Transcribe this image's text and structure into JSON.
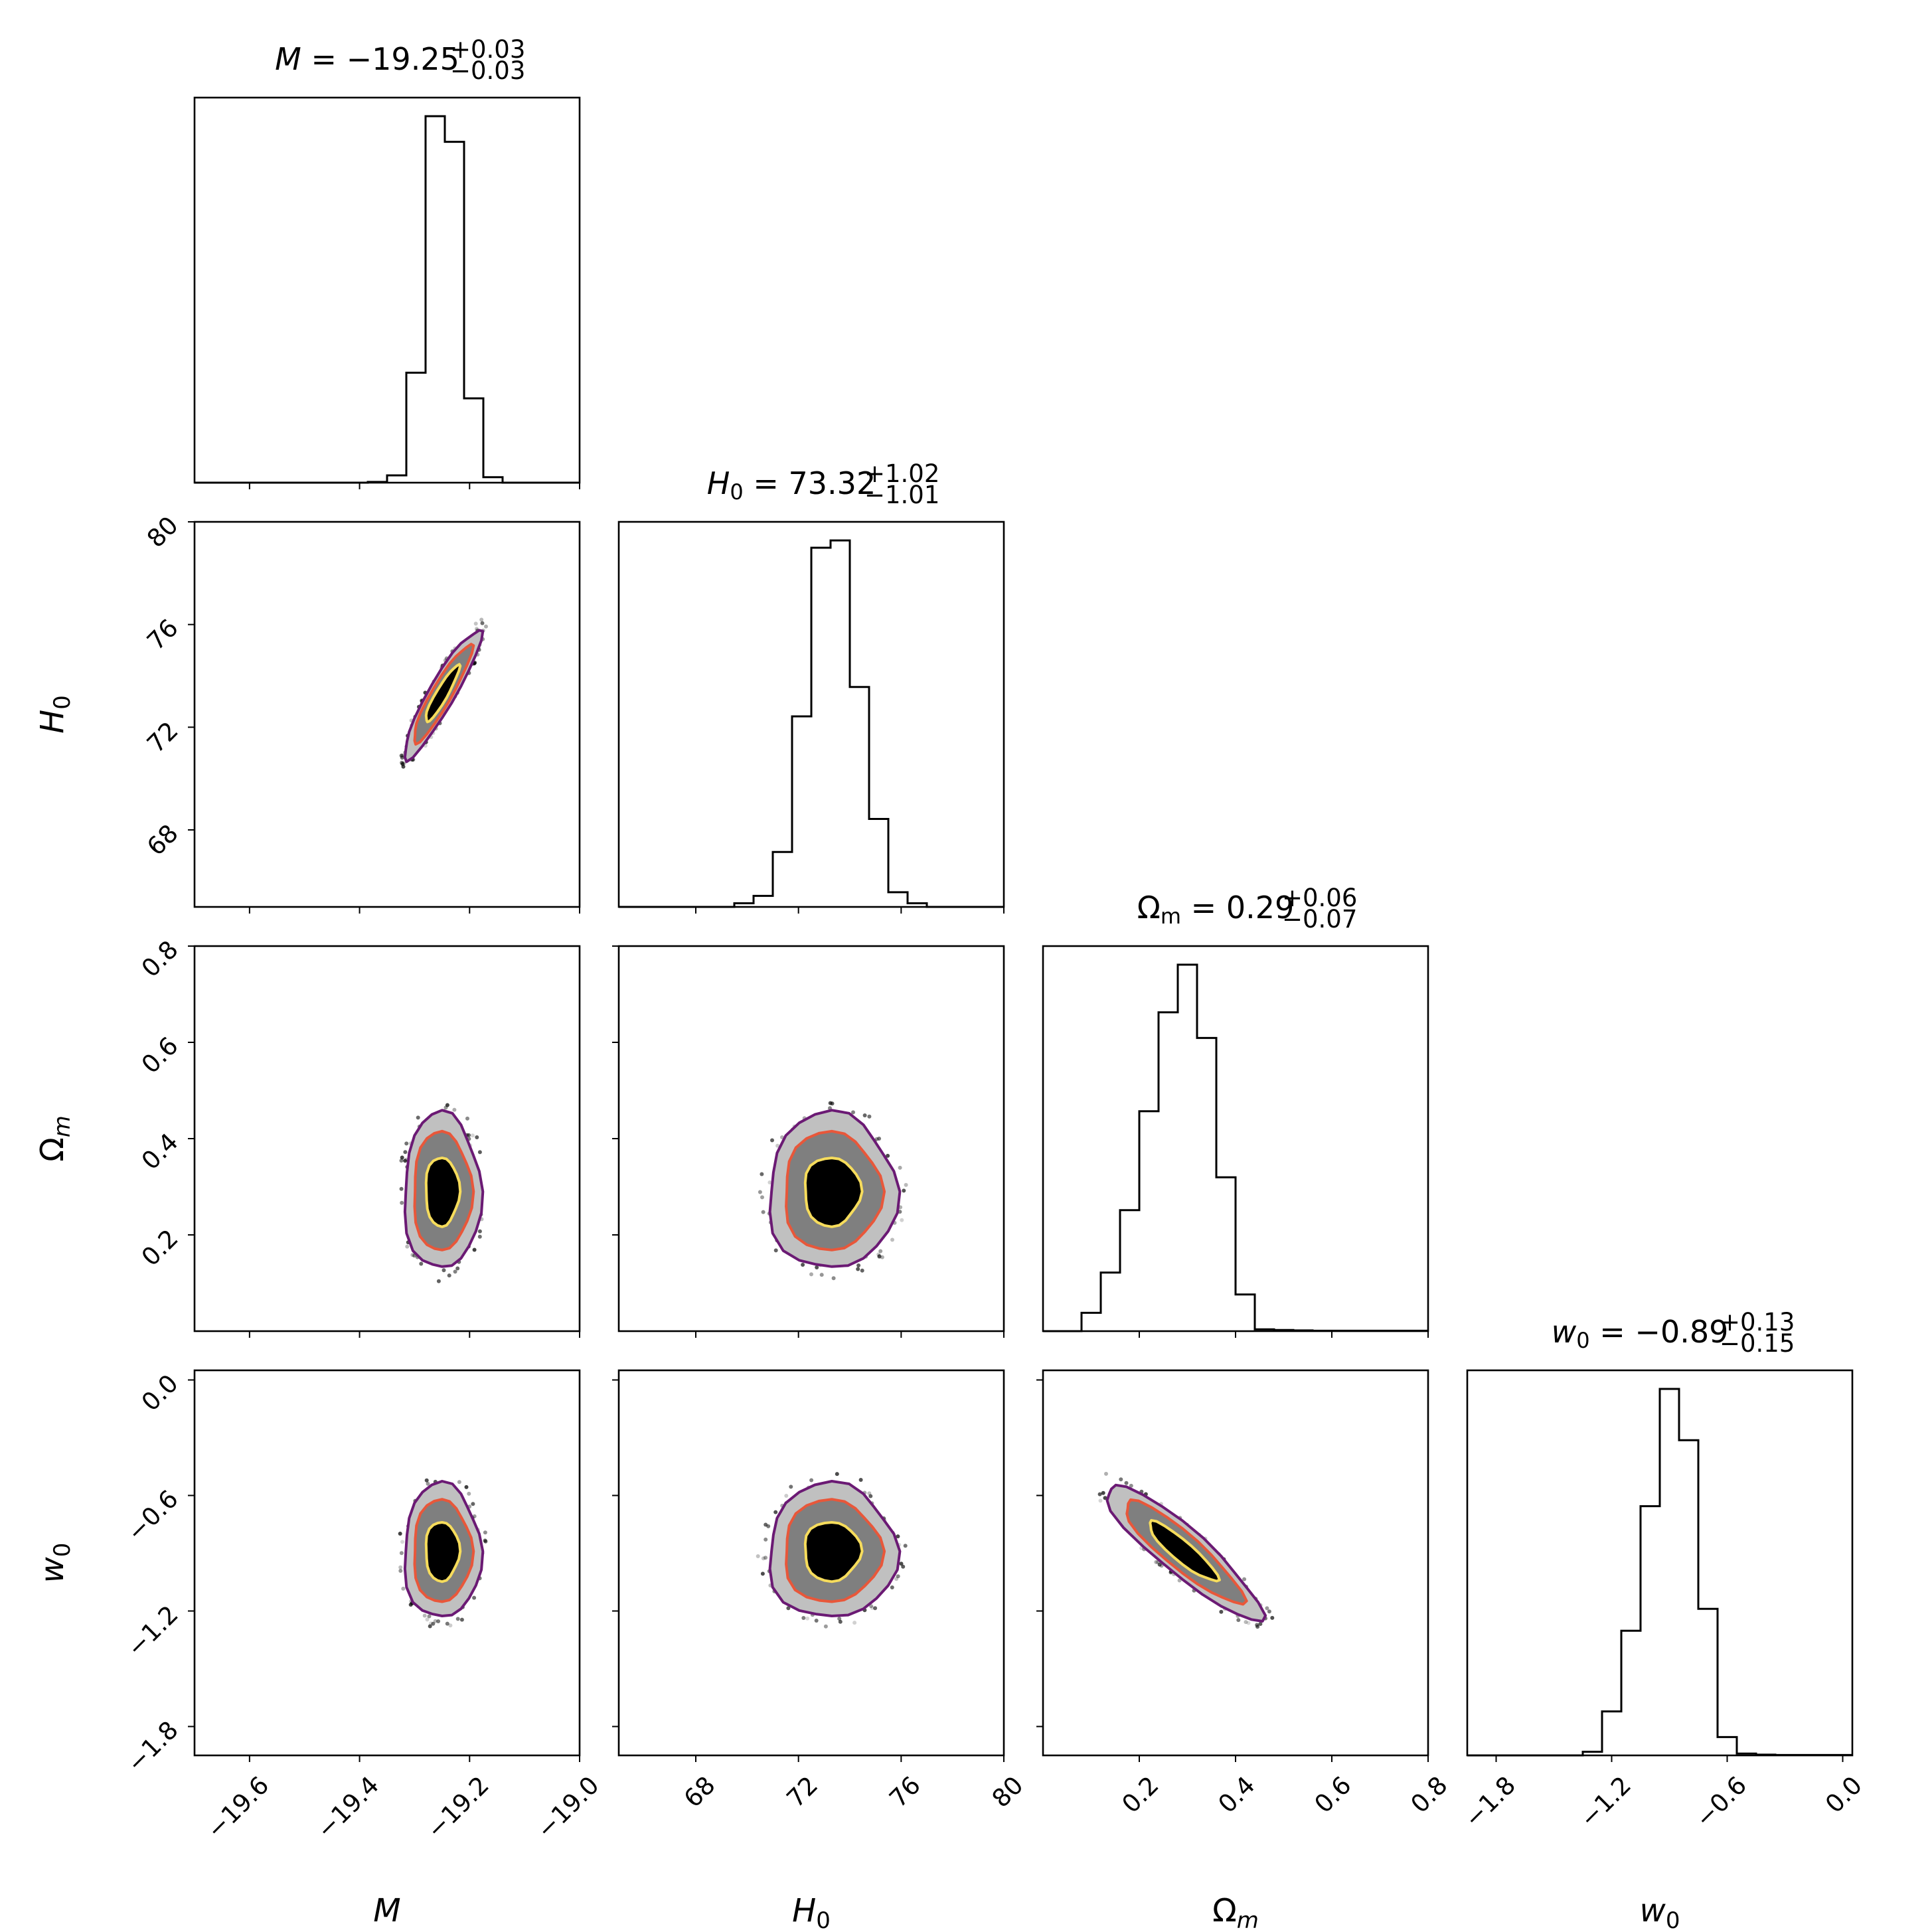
{
  "chart_data": {
    "type": "corner",
    "parameters": [
      {
        "key": "M",
        "label": "M",
        "title": "M = −19.25",
        "value": "−19.25",
        "err_plus": "+0.03",
        "err_minus": "−0.03",
        "range": [
          -19.7,
          -19.0
        ],
        "ticks": [
          -19.6,
          -19.4,
          -19.2,
          -19.0
        ],
        "tick_labels": [
          "−19.6",
          "−19.4",
          "−19.2",
          "−19.0"
        ],
        "hist_edges": [
          -19.7,
          -19.665,
          -19.63,
          -19.595,
          -19.56,
          -19.525,
          -19.49,
          -19.455,
          -19.42,
          -19.385,
          -19.35,
          -19.315,
          -19.28,
          -19.245,
          -19.21,
          -19.175,
          -19.14,
          -19.105,
          -19.07,
          -19.035,
          -19.0
        ],
        "hist_counts": [
          0,
          0,
          0,
          0,
          0,
          0,
          0,
          0,
          0,
          0.002,
          0.02,
          0.3,
          1.0,
          0.93,
          0.23,
          0.015,
          0,
          0,
          0,
          0
        ]
      },
      {
        "key": "H0",
        "label": "H",
        "label_sub": "0",
        "title": "H0 = 73.32",
        "value": "73.32",
        "err_plus": "+1.02",
        "err_minus": "−1.01",
        "range": [
          65,
          80
        ],
        "ticks": [
          68,
          72,
          76,
          80
        ],
        "tick_labels": [
          "68",
          "72",
          "76",
          "80"
        ],
        "hist_edges": [
          65,
          65.75,
          66.5,
          67.25,
          68,
          68.75,
          69.5,
          70.25,
          71,
          71.75,
          72.5,
          73.25,
          74,
          74.75,
          75.5,
          76.25,
          77,
          77.75,
          78.5,
          79.25,
          80
        ],
        "hist_counts": [
          0,
          0,
          0,
          0,
          0,
          0,
          0.01,
          0.03,
          0.15,
          0.52,
          0.98,
          1.0,
          0.6,
          0.24,
          0.04,
          0.01,
          0,
          0,
          0,
          0
        ]
      },
      {
        "key": "Om",
        "label": "Ω",
        "label_sub": "m",
        "title": "Ωm = 0.29",
        "value": "0.29",
        "err_plus": "+0.06",
        "err_minus": "−0.07",
        "range": [
          0.0,
          0.8
        ],
        "ticks": [
          0.2,
          0.4,
          0.6,
          0.8
        ],
        "tick_labels": [
          "0.2",
          "0.4",
          "0.6",
          "0.8"
        ],
        "hist_edges": [
          0.0,
          0.04,
          0.08,
          0.12,
          0.16,
          0.2,
          0.24,
          0.28,
          0.32,
          0.36,
          0.4,
          0.44,
          0.48,
          0.52,
          0.56,
          0.6,
          0.64,
          0.68,
          0.72,
          0.76,
          0.8
        ],
        "hist_counts": [
          0,
          0,
          0.05,
          0.16,
          0.33,
          0.6,
          0.87,
          1.0,
          0.8,
          0.42,
          0.1,
          0.005,
          0.003,
          0.002,
          0.001,
          0.001,
          0.001,
          0.001,
          0.001,
          0.001
        ]
      },
      {
        "key": "w0",
        "label": "w",
        "label_sub": "0",
        "title": "w0 = −0.89",
        "value": "−0.89",
        "err_plus": "+0.13",
        "err_minus": "−0.15",
        "range": [
          -1.95,
          0.05
        ],
        "ticks": [
          -1.8,
          -1.2,
          -0.6,
          0.0
        ],
        "tick_labels": [
          "−1.8",
          "−1.2",
          "−0.6",
          "0.0"
        ],
        "hist_edges": [
          -1.95,
          -1.85,
          -1.75,
          -1.65,
          -1.55,
          -1.45,
          -1.35,
          -1.25,
          -1.15,
          -1.05,
          -0.95,
          -0.85,
          -0.75,
          -0.65,
          -0.55,
          -0.45,
          -0.35,
          -0.25,
          -0.15,
          -0.05,
          0.05
        ],
        "hist_counts": [
          0,
          0,
          0,
          0,
          0,
          0,
          0.01,
          0.12,
          0.34,
          0.68,
          1.0,
          0.86,
          0.4,
          0.05,
          0.005,
          0.002,
          0.001,
          0.001,
          0.001,
          0.001
        ]
      }
    ],
    "pairs": [
      {
        "x": 0,
        "y": 1,
        "center": [
          -19.25,
          73.3
        ],
        "sx": 0.028,
        "sy": 1.0,
        "rho": 0.92
      },
      {
        "x": 0,
        "y": 2,
        "center": [
          -19.25,
          0.29
        ],
        "sx": 0.028,
        "sy": 0.065,
        "rho": 0.0
      },
      {
        "x": 1,
        "y": 2,
        "center": [
          73.3,
          0.29
        ],
        "sx": 1.0,
        "sy": 0.065,
        "rho": 0.0
      },
      {
        "x": 0,
        "y": 3,
        "center": [
          -19.25,
          -0.89
        ],
        "sx": 0.028,
        "sy": 0.14,
        "rho": 0.0
      },
      {
        "x": 1,
        "y": 3,
        "center": [
          73.3,
          -0.89
        ],
        "sx": 1.0,
        "sy": 0.14,
        "rho": 0.0
      },
      {
        "x": 2,
        "y": 3,
        "center": [
          0.29,
          -0.89
        ],
        "sx": 0.065,
        "sy": 0.14,
        "rho": -0.9
      }
    ],
    "contour_levels": [
      "1-sigma",
      "2-sigma",
      "3-sigma"
    ],
    "contour_colors": {
      "inner": "#f6dc5c",
      "middle": "#e8573a",
      "outer": "#6b1a74"
    },
    "fill_colors": {
      "inner": "#000000",
      "middle": "#7f7f7f",
      "outer": "#c0c0c0"
    }
  }
}
